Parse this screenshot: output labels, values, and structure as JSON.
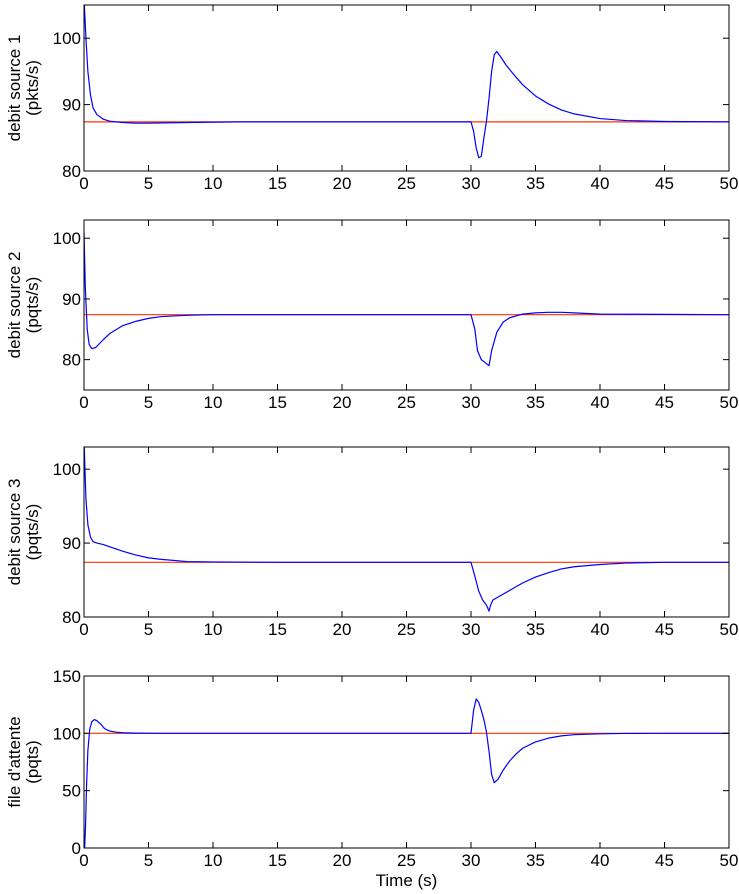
{
  "colors": {
    "measured": "#0000ff",
    "reference": "#ff3300",
    "axes": "#000000",
    "background": "#ffffff"
  },
  "chart_data": [
    {
      "type": "line",
      "ylabel": [
        "debit source 1",
        "(pkts/s)"
      ],
      "xlabel": "",
      "xlim": [
        0,
        50
      ],
      "ylim": [
        80,
        105
      ],
      "xticks": [
        0,
        5,
        10,
        15,
        20,
        25,
        30,
        35,
        40,
        45,
        50
      ],
      "yticks": [
        80,
        90,
        100
      ],
      "grid": false,
      "series": [
        {
          "role": "measured",
          "color": "#0000ff",
          "x": [
            0,
            0.15,
            0.3,
            0.5,
            0.7,
            1.0,
            1.5,
            2,
            3,
            4,
            5,
            8,
            12,
            20,
            25,
            30,
            30.2,
            30.4,
            30.6,
            30.8,
            31.0,
            31.2,
            31.4,
            31.6,
            31.8,
            32.0,
            32.3,
            32.7,
            33.2,
            34,
            35,
            36,
            37,
            38,
            40,
            42,
            45,
            50
          ],
          "y": [
            106,
            100,
            95,
            91.5,
            89.5,
            88.5,
            87.8,
            87.5,
            87.3,
            87.2,
            87.2,
            87.3,
            87.4,
            87.4,
            87.4,
            87.4,
            86,
            83.5,
            82,
            82.2,
            85,
            87.5,
            91,
            95,
            97.5,
            98,
            97.2,
            96,
            94.8,
            93,
            91.3,
            90.1,
            89.2,
            88.6,
            87.9,
            87.6,
            87.45,
            87.4
          ]
        },
        {
          "role": "reference",
          "color": "#ff3300",
          "x": [
            0,
            50
          ],
          "y": [
            87.4,
            87.4
          ]
        }
      ]
    },
    {
      "type": "line",
      "ylabel": [
        "debit source 2",
        "(pqts/s)"
      ],
      "xlabel": "",
      "xlim": [
        0,
        50
      ],
      "ylim": [
        75,
        103
      ],
      "xticks": [
        0,
        5,
        10,
        15,
        20,
        25,
        30,
        35,
        40,
        45,
        50
      ],
      "yticks": [
        80,
        90,
        100
      ],
      "grid": false,
      "series": [
        {
          "role": "measured",
          "color": "#0000ff",
          "x": [
            0,
            0.1,
            0.25,
            0.4,
            0.6,
            0.9,
            1.5,
            2,
            3,
            4,
            5,
            6,
            8,
            10,
            15,
            20,
            25,
            30,
            30.3,
            30.5,
            30.8,
            31.1,
            31.4,
            31.6,
            32,
            32.5,
            33,
            34,
            35,
            36,
            37,
            38,
            40,
            45,
            50
          ],
          "y": [
            101,
            92,
            85,
            82.5,
            81.8,
            82,
            83.3,
            84.3,
            85.6,
            86.3,
            86.8,
            87.1,
            87.3,
            87.4,
            87.4,
            87.4,
            87.4,
            87.4,
            85,
            81.5,
            80,
            79.5,
            79,
            81.5,
            84.5,
            86.2,
            86.9,
            87.5,
            87.7,
            87.8,
            87.8,
            87.7,
            87.5,
            87.45,
            87.4
          ]
        },
        {
          "role": "reference",
          "color": "#ff3300",
          "x": [
            0,
            50
          ],
          "y": [
            87.4,
            87.4
          ]
        }
      ]
    },
    {
      "type": "line",
      "ylabel": [
        "debit source 3",
        "(pqts/s)"
      ],
      "xlabel": "",
      "xlim": [
        0,
        50
      ],
      "ylim": [
        80,
        103
      ],
      "xticks": [
        0,
        5,
        10,
        15,
        20,
        25,
        30,
        35,
        40,
        45,
        50
      ],
      "yticks": [
        80,
        90,
        100
      ],
      "grid": false,
      "series": [
        {
          "role": "measured",
          "color": "#0000ff",
          "x": [
            0,
            0.15,
            0.3,
            0.5,
            0.7,
            1,
            1.5,
            2,
            3,
            4,
            5,
            6,
            8,
            10,
            15,
            20,
            25,
            30,
            30.3,
            30.6,
            30.9,
            31.2,
            31.4,
            31.5,
            31.7,
            32,
            32.5,
            33,
            34,
            35,
            36,
            37,
            38,
            40,
            42,
            45,
            50
          ],
          "y": [
            104,
            96,
            92.5,
            90.8,
            90.2,
            90,
            89.8,
            89.5,
            88.9,
            88.4,
            88,
            87.8,
            87.5,
            87.45,
            87.4,
            87.4,
            87.4,
            87.4,
            85.5,
            83.5,
            82.3,
            81.6,
            80.8,
            81.5,
            82.3,
            82.6,
            83.1,
            83.6,
            84.6,
            85.4,
            86,
            86.5,
            86.8,
            87.1,
            87.3,
            87.4,
            87.4
          ]
        },
        {
          "role": "reference",
          "color": "#ff3300",
          "x": [
            0,
            50
          ],
          "y": [
            87.4,
            87.4
          ]
        }
      ]
    },
    {
      "type": "line",
      "ylabel": [
        "file d'attente",
        "(pqts)"
      ],
      "xlabel": "Time (s)",
      "xlim": [
        0,
        50
      ],
      "ylim": [
        0,
        150
      ],
      "xticks": [
        0,
        5,
        10,
        15,
        20,
        25,
        30,
        35,
        40,
        45,
        50
      ],
      "yticks": [
        0,
        50,
        100,
        150
      ],
      "grid": false,
      "series": [
        {
          "role": "measured",
          "color": "#0000ff",
          "x": [
            0,
            0.05,
            0.12,
            0.2,
            0.3,
            0.45,
            0.6,
            0.8,
            1,
            1.3,
            1.6,
            2,
            2.5,
            3,
            4,
            6,
            10,
            20,
            30,
            30.2,
            30.4,
            30.6,
            30.8,
            31,
            31.2,
            31.4,
            31.6,
            31.8,
            32.1,
            32.5,
            33,
            33.5,
            34,
            35,
            36,
            37,
            38,
            40,
            42,
            45,
            50
          ],
          "y": [
            0,
            0,
            20,
            55,
            85,
            104,
            110,
            112,
            111,
            108,
            104,
            102,
            101,
            100.5,
            100.2,
            100,
            100,
            100,
            100,
            120,
            130,
            127,
            120,
            112,
            101,
            84,
            64,
            57,
            60,
            68,
            76,
            82,
            87,
            92.5,
            95.8,
            97.8,
            98.8,
            99.6,
            99.9,
            100,
            100
          ]
        },
        {
          "role": "reference",
          "color": "#ff3300",
          "x": [
            0,
            50
          ],
          "y": [
            100,
            100
          ]
        }
      ]
    }
  ]
}
